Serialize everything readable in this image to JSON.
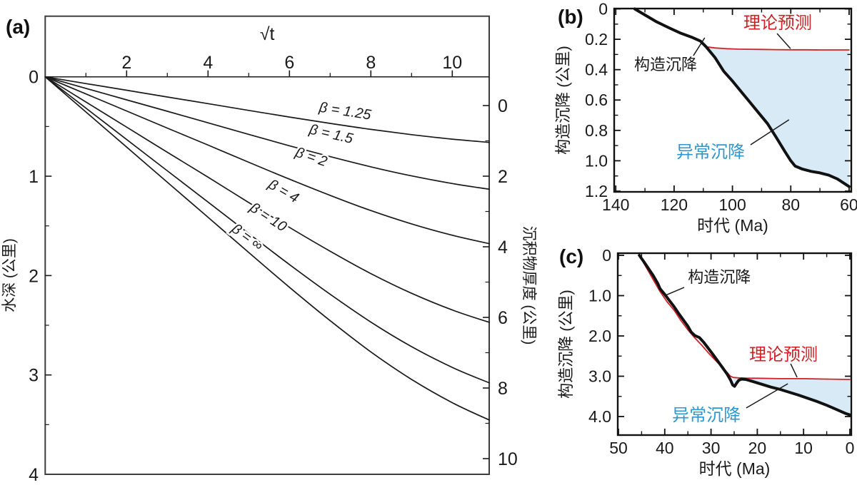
{
  "panels": {
    "a": {
      "label": "(a)"
    },
    "b": {
      "label": "(b)"
    },
    "c": {
      "label": "(c)"
    }
  },
  "colors": {
    "curve_black": "#1a1a1a",
    "box_gray": "#3d3d3d",
    "red": "#cf2127",
    "blue_text": "#2e97cf",
    "blue_fill": "#d7eaf6"
  },
  "chart_data": [
    {
      "id": "a",
      "type": "line",
      "top_axis": {
        "title": "√t",
        "major_ticks": [
          2,
          4,
          6,
          8,
          10
        ],
        "minor_ticks": [
          1,
          3,
          5,
          7,
          9
        ],
        "range": [
          0,
          10.91
        ]
      },
      "left_axis": {
        "title": "水深 (公里)",
        "major_ticks": [
          0,
          1,
          2,
          3,
          4
        ],
        "minor_ticks": [
          0.5,
          1.5,
          2.5,
          3.5
        ],
        "range": [
          0,
          4
        ]
      },
      "right_axis": {
        "title": "沉积物厚度 (公里)",
        "major_ticks": [
          0,
          2,
          4,
          6,
          8,
          10
        ],
        "minor_ticks": [
          1,
          3,
          5,
          7,
          9
        ],
        "range": [
          0,
          10
        ]
      },
      "x_values": [
        0,
        1,
        2,
        3,
        4,
        5,
        6,
        7,
        8,
        9,
        10,
        10.91
      ],
      "series": [
        {
          "name": "β = 1.25",
          "water_depth_km": [
            0,
            0.068,
            0.135,
            0.203,
            0.27,
            0.338,
            0.405,
            0.469,
            0.529,
            0.582,
            0.627,
            0.66
          ],
          "label": {
            "x": 7.35,
            "depth": 0.34,
            "angle": 9
          }
        },
        {
          "name": "β = 1.5",
          "water_depth_km": [
            0,
            0.116,
            0.232,
            0.347,
            0.463,
            0.579,
            0.694,
            0.803,
            0.906,
            0.997,
            1.074,
            1.131
          ],
          "label": {
            "x": 7.0,
            "depth": 0.57,
            "angle": 13
          }
        },
        {
          "name": "β = 2",
          "water_depth_km": [
            0,
            0.172,
            0.344,
            0.516,
            0.687,
            0.86,
            1.03,
            1.193,
            1.346,
            1.48,
            1.594,
            1.679
          ],
          "label": {
            "x": 6.5,
            "depth": 0.8,
            "angle": 19
          }
        },
        {
          "name": "β = 4",
          "water_depth_km": [
            0,
            0.253,
            0.506,
            0.759,
            1.01,
            1.265,
            1.515,
            1.755,
            1.98,
            2.178,
            2.346,
            2.471
          ],
          "label": {
            "x": 5.8,
            "depth": 1.14,
            "angle": 30
          }
        },
        {
          "name": "β = 10",
          "water_depth_km": [
            0,
            0.315,
            0.631,
            0.946,
            1.26,
            1.577,
            1.889,
            2.188,
            2.468,
            2.715,
            2.924,
            3.08
          ],
          "label": {
            "x": 5.42,
            "depth": 1.4,
            "angle": 33
          }
        },
        {
          "name": "β = ∞",
          "water_depth_km": [
            0,
            0.354,
            0.707,
            1.061,
            1.413,
            1.768,
            2.118,
            2.454,
            2.768,
            3.045,
            3.279,
            3.454
          ],
          "label": {
            "x": 4.9,
            "depth": 1.6,
            "angle": 36
          }
        }
      ]
    },
    {
      "id": "b",
      "type": "line",
      "x_axis": {
        "title": "时代 (Ma)",
        "major_ticks": [
          140,
          120,
          100,
          80,
          60
        ],
        "minor_ticks": [
          130,
          110,
          90,
          70
        ],
        "major_labels": [
          "140",
          "120",
          "100",
          "80",
          "60"
        ]
      },
      "y_axis": {
        "title": "构造沉降 (公里)",
        "major_ticks": [
          0,
          0.2,
          0.4,
          0.6,
          0.8,
          1.0,
          1.2
        ],
        "major_labels": [
          "0",
          "0.2",
          "0.4",
          "0.6",
          "0.8",
          "1.0",
          "1.2"
        ],
        "minor_ticks": [
          0.1,
          0.3,
          0.5,
          0.7,
          0.9,
          1.1
        ]
      },
      "series": [
        {
          "name": "构造沉降",
          "color": "black",
          "points": [
            [
              133.5,
              0
            ],
            [
              130,
              0.04
            ],
            [
              126,
              0.085
            ],
            [
              122,
              0.122
            ],
            [
              118,
              0.158
            ],
            [
              114,
              0.186
            ],
            [
              111,
              0.212
            ],
            [
              109,
              0.25
            ],
            [
              106,
              0.32
            ],
            [
              103,
              0.41
            ],
            [
              100,
              0.475
            ],
            [
              97,
              0.545
            ],
            [
              94,
              0.615
            ],
            [
              91,
              0.685
            ],
            [
              88,
              0.755
            ],
            [
              85,
              0.845
            ],
            [
              82,
              0.94
            ],
            [
              80,
              1.0
            ],
            [
              78.5,
              1.035
            ],
            [
              76,
              1.055
            ],
            [
              73,
              1.07
            ],
            [
              70,
              1.08
            ],
            [
              67,
              1.095
            ],
            [
              64,
              1.12
            ],
            [
              62,
              1.145
            ],
            [
              60,
              1.17
            ]
          ]
        },
        {
          "name": "理论预测",
          "color": "red",
          "points": [
            [
              109,
              0.25
            ],
            [
              106,
              0.257
            ],
            [
              102,
              0.262
            ],
            [
              98,
              0.265
            ],
            [
              94,
              0.266
            ],
            [
              90,
              0.267
            ],
            [
              85,
              0.268
            ],
            [
              80,
              0.269
            ],
            [
              75,
              0.269
            ],
            [
              70,
              0.27
            ],
            [
              65,
              0.27
            ],
            [
              60,
              0.27
            ]
          ]
        }
      ],
      "shade_from_ma": 109,
      "annotations": [
        {
          "text": "构造沉降",
          "color": "#1a1a1a",
          "fs": 22,
          "ma": 122.9,
          "km": 0.364,
          "pointer": [
            [
              113.4,
              0.308
            ],
            [
              109.5,
              0.19
            ]
          ]
        },
        {
          "text": "理论预测",
          "color": "#cf2127",
          "fs": 24,
          "ma": 84.5,
          "km": 0.092,
          "pointer": [
            [
              84.7,
              0.162
            ],
            [
              80.1,
              0.261
            ]
          ]
        },
        {
          "text": "异常沉降",
          "color": "#2e97cf",
          "fs": 24,
          "ma": 107.5,
          "km": 0.942,
          "pointer": [
            [
              93.8,
              0.895
            ],
            [
              80.6,
              0.73
            ]
          ]
        }
      ]
    },
    {
      "id": "c",
      "type": "line",
      "x_axis": {
        "title": "时代 (Ma)",
        "major_ticks": [
          50,
          40,
          30,
          20,
          10,
          0
        ],
        "minor_ticks": [
          45,
          35,
          25,
          15,
          5
        ],
        "major_labels": [
          "50",
          "40",
          "30",
          "20",
          "10",
          "0"
        ]
      },
      "y_axis": {
        "title": "构造沉降 (公里)",
        "major_ticks": [
          0,
          1,
          2,
          3,
          4
        ],
        "major_labels": [
          "0",
          "1.0",
          "2.0",
          "3.0",
          "4.0"
        ],
        "minor_ticks": [
          0.5,
          1.5,
          2.5,
          3.5
        ]
      },
      "series": [
        {
          "name": "构造沉降",
          "color": "black",
          "points": [
            [
              45.5,
              0
            ],
            [
              44.5,
              0.16
            ],
            [
              43.5,
              0.33
            ],
            [
              42.5,
              0.5
            ],
            [
              41.5,
              0.7
            ],
            [
              41,
              0.83
            ],
            [
              40,
              0.97
            ],
            [
              39,
              1.12
            ],
            [
              38,
              1.27
            ],
            [
              37,
              1.44
            ],
            [
              36,
              1.6
            ],
            [
              35,
              1.76
            ],
            [
              34.3,
              1.9
            ],
            [
              33.5,
              1.99
            ],
            [
              32.5,
              2.04
            ],
            [
              31.5,
              2.17
            ],
            [
              30.5,
              2.32
            ],
            [
              29.5,
              2.47
            ],
            [
              28.5,
              2.63
            ],
            [
              27.5,
              2.79
            ],
            [
              26.5,
              2.95
            ],
            [
              25.8,
              3.09
            ],
            [
              25.3,
              3.22
            ],
            [
              24.9,
              3.25
            ],
            [
              24.4,
              3.16
            ],
            [
              24,
              3.1
            ],
            [
              23.4,
              3.07
            ],
            [
              22.5,
              3.08
            ],
            [
              21,
              3.13
            ],
            [
              19,
              3.2
            ],
            [
              17,
              3.27
            ],
            [
              15,
              3.33
            ],
            [
              13,
              3.4
            ],
            [
              11,
              3.47
            ],
            [
              9,
              3.55
            ],
            [
              7,
              3.63
            ],
            [
              5,
              3.72
            ],
            [
              3,
              3.82
            ],
            [
              1,
              3.92
            ],
            [
              0,
              3.96
            ]
          ]
        },
        {
          "name": "理论预测",
          "color": "red",
          "points": [
            [
              45.5,
              0
            ],
            [
              44,
              0.3
            ],
            [
              42.5,
              0.6
            ],
            [
              41,
              0.9
            ],
            [
              39.5,
              1.15
            ],
            [
              38,
              1.36
            ],
            [
              36.5,
              1.62
            ],
            [
              35,
              1.85
            ],
            [
              33.5,
              2.05
            ],
            [
              32,
              2.23
            ],
            [
              30.5,
              2.43
            ],
            [
              29,
              2.61
            ],
            [
              27.5,
              2.79
            ],
            [
              26.5,
              2.91
            ],
            [
              25.8,
              3.0
            ],
            [
              25.2,
              3.03
            ],
            [
              24,
              3.04
            ],
            [
              22,
              3.05
            ],
            [
              20,
              3.05
            ],
            [
              15,
              3.06
            ],
            [
              10,
              3.06
            ],
            [
              5,
              3.07
            ],
            [
              0,
              3.08
            ]
          ]
        }
      ],
      "shade_from_ma": 25.2,
      "annotations": [
        {
          "text": "构造沉降",
          "color": "#1a1a1a",
          "fs": 22,
          "ma": 28.2,
          "km": 0.531,
          "pointer": [
            [
              35.8,
              0.796
            ],
            [
              39.8,
              0.991
            ]
          ]
        },
        {
          "text": "理论预测",
          "color": "#cf2127",
          "fs": 24,
          "ma": 14.35,
          "km": 2.46,
          "pointer": [
            [
              12.8,
              2.69
            ],
            [
              11.4,
              3.027
            ]
          ]
        },
        {
          "text": "异常沉降",
          "color": "#2e97cf",
          "fs": 24,
          "ma": 31.0,
          "km": 3.965,
          "pointer": [
            [
              22.4,
              3.788
            ],
            [
              13.4,
              3.186
            ]
          ]
        }
      ]
    }
  ]
}
